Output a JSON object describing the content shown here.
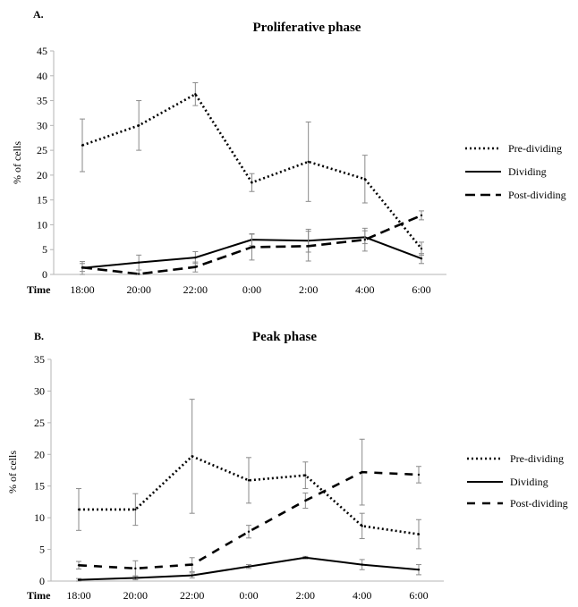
{
  "chart_data": [
    {
      "type": "line",
      "panel_label": "A.",
      "title": "Proliferative phase",
      "ylabel": "% of cells",
      "xlabel": "Time",
      "ylim": [
        0,
        45
      ],
      "yticks": [
        0,
        5,
        10,
        15,
        20,
        25,
        30,
        35,
        40,
        45
      ],
      "categories": [
        "18:00",
        "20:00",
        "22:00",
        "0:00",
        "2:00",
        "4:00",
        "6:00"
      ],
      "legend_position": "right",
      "series": [
        {
          "name": "Pre-dividing",
          "style": "dotted",
          "values": [
            26,
            30,
            36.3,
            18.5,
            22.7,
            19.2,
            5.2
          ],
          "err": [
            5.3,
            5,
            2.3,
            1.8,
            8,
            4.8,
            1.3
          ]
        },
        {
          "name": "Dividing",
          "style": "solid",
          "values": [
            1.3,
            2.4,
            3.4,
            7,
            6.8,
            7.5,
            3.2
          ],
          "err": [
            1.3,
            1.5,
            1.2,
            1.2,
            2.3,
            1.3,
            1
          ]
        },
        {
          "name": "Post-dividing",
          "style": "dashed",
          "values": [
            1.4,
            0.1,
            1.5,
            5.5,
            5.7,
            7,
            11.9
          ],
          "err": [
            0.8,
            0.8,
            1,
            2.6,
            3,
            2.3,
            0.9
          ]
        }
      ]
    },
    {
      "type": "line",
      "panel_label": "B.",
      "title": "Peak phase",
      "ylabel": "% of cells",
      "xlabel": "Time",
      "ylim": [
        0,
        35
      ],
      "yticks": [
        0,
        5,
        10,
        15,
        20,
        25,
        30,
        35
      ],
      "categories": [
        "18:00",
        "20:00",
        "22:00",
        "0:00",
        "2:00",
        "4:00",
        "6:00"
      ],
      "legend_position": "right",
      "series": [
        {
          "name": "Pre-dividing",
          "style": "dotted",
          "values": [
            11.3,
            11.3,
            19.7,
            15.9,
            16.7,
            8.7,
            7.4
          ],
          "err": [
            3.3,
            2.5,
            9,
            3.6,
            2.1,
            2,
            2.3
          ]
        },
        {
          "name": "Dividing",
          "style": "solid",
          "values": [
            0.2,
            0.5,
            0.9,
            2.3,
            3.7,
            2.6,
            1.8
          ],
          "err": [
            0.2,
            0.3,
            0.4,
            0.3,
            0.2,
            0.8,
            0.8
          ]
        },
        {
          "name": "Post-dividing",
          "style": "dashed-long",
          "values": [
            2.5,
            2,
            2.6,
            7.8,
            12.7,
            17.2,
            16.8
          ],
          "err": [
            0.6,
            1.2,
            1.1,
            1,
            1.2,
            5.2,
            1.3
          ]
        }
      ]
    }
  ]
}
